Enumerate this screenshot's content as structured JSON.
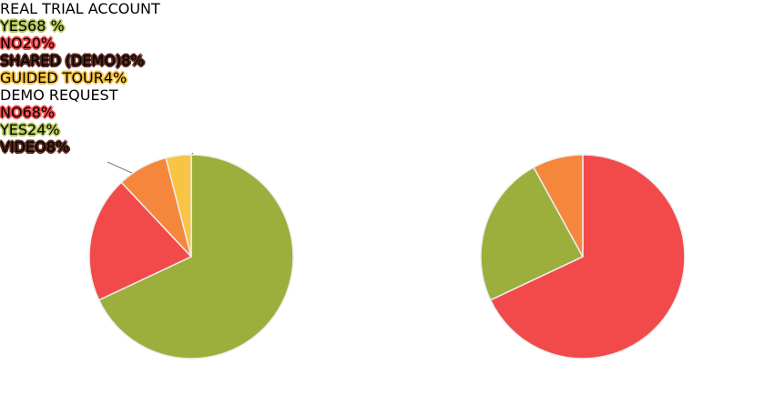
{
  "chart_data": [
    {
      "type": "pie",
      "title": "REAL TRIAL\nACCOUNT",
      "categories": [
        "YES",
        "NO",
        "SHARED\n(DEMO)",
        "GUIDED\nTOUR"
      ],
      "values": [
        68,
        20,
        8,
        4
      ],
      "value_labels": [
        "68 %",
        "20%",
        "8%",
        "4%"
      ],
      "colors": [
        "#9caf3c",
        "#f24a4a",
        "#f5873c",
        "#f8c444"
      ]
    },
    {
      "type": "pie",
      "title": "DEMO\nREQUEST",
      "categories": [
        "NO",
        "YES",
        "VIDEO"
      ],
      "values": [
        68,
        24,
        8
      ],
      "value_labels": [
        "68%",
        "24%",
        "8%"
      ],
      "colors": [
        "#f24a4a",
        "#9caf3c",
        "#f5873c"
      ]
    }
  ]
}
